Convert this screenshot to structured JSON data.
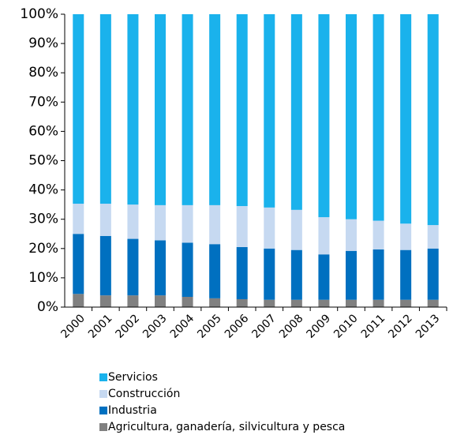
{
  "chart_data": {
    "type": "bar",
    "stacked": true,
    "categories": [
      "2000",
      "2001",
      "2002",
      "2003",
      "2004",
      "2005",
      "2006",
      "2007",
      "2008",
      "2009",
      "2010",
      "2011",
      "2012",
      "2013"
    ],
    "series": [
      {
        "name": "Agricultura, ganadería,  silvicultura  y pesca",
        "color": "#808080",
        "values": [
          4.5,
          4,
          4,
          4,
          3.5,
          3,
          2.7,
          2.5,
          2.5,
          2.5,
          2.5,
          2.5,
          2.5,
          2.5
        ]
      },
      {
        "name": "Industria",
        "color": "#0070c0",
        "values": [
          20.5,
          20.3,
          19.3,
          18.8,
          18.5,
          18.5,
          17.8,
          17.5,
          17,
          15.5,
          16.7,
          17.2,
          17,
          17.5
        ]
      },
      {
        "name": "Construcción",
        "color": "#c6d9f1",
        "values": [
          10.3,
          11,
          11.7,
          12,
          12.8,
          13.3,
          14,
          14,
          13.7,
          12.7,
          10.8,
          9.8,
          9,
          8
        ]
      },
      {
        "name": "Servicios",
        "color": "#1ab2ec",
        "values": [
          64.7,
          64.7,
          65,
          65.2,
          65.2,
          65.2,
          65.5,
          66,
          66.8,
          69.3,
          70,
          70.5,
          71.5,
          72
        ]
      }
    ],
    "ylim": [
      0,
      100
    ],
    "yticks": [
      {
        "value": 0,
        "label": "0%"
      },
      {
        "value": 10,
        "label": "10%"
      },
      {
        "value": 20,
        "label": "20%"
      },
      {
        "value": 30,
        "label": "30%"
      },
      {
        "value": 40,
        "label": "40%"
      },
      {
        "value": 50,
        "label": "50%"
      },
      {
        "value": 60,
        "label": "60%"
      },
      {
        "value": 70,
        "label": "70%"
      },
      {
        "value": 80,
        "label": "80%"
      },
      {
        "value": 90,
        "label": "90%"
      },
      {
        "value": 100,
        "label": "100%"
      }
    ]
  }
}
